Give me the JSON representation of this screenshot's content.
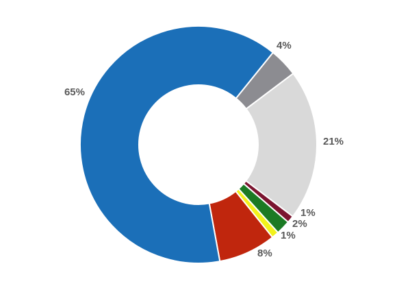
{
  "chart_data": {
    "type": "pie",
    "variant": "donut",
    "title": "",
    "legend": "none",
    "slices": [
      {
        "label": "4%",
        "value": 4,
        "color": "#8C8C91"
      },
      {
        "label": "21%",
        "value": 21,
        "color": "#D9D9D9"
      },
      {
        "label": "1%",
        "value": 1,
        "color": "#7B1530"
      },
      {
        "label": "2%",
        "value": 2,
        "color": "#1B7A24"
      },
      {
        "label": "1%",
        "value": 1,
        "color": "#F2F21C"
      },
      {
        "label": "8%",
        "value": 8,
        "color": "#C0260D"
      },
      {
        "label": "65%",
        "value": 65,
        "color": "#1B6FB8"
      }
    ]
  }
}
